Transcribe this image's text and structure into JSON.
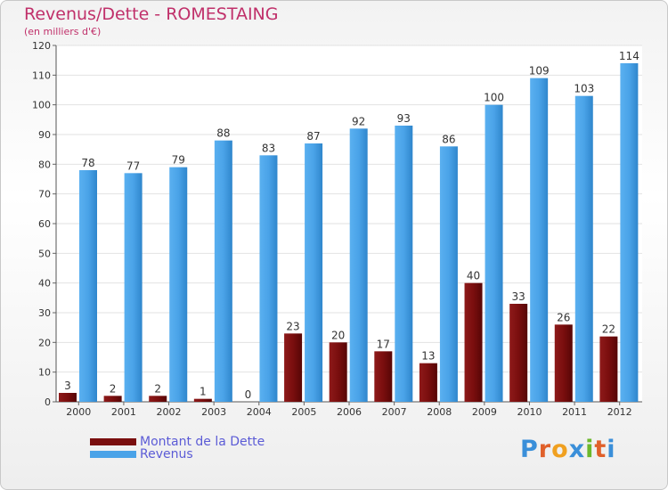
{
  "chart_data": {
    "type": "bar",
    "title": "Revenus/Dette - ROMESTAING",
    "subtitle": "(en milliers d'€)",
    "categories": [
      "2000",
      "2001",
      "2002",
      "2003",
      "2004",
      "2005",
      "2006",
      "2007",
      "2008",
      "2009",
      "2010",
      "2011",
      "2012"
    ],
    "series": [
      {
        "name": "Montant de la Dette",
        "color": "#7a0e0e",
        "values": [
          3,
          2,
          2,
          1,
          0,
          23,
          20,
          17,
          13,
          40,
          33,
          26,
          22
        ]
      },
      {
        "name": "Revenus",
        "color": "#4aa3e8",
        "values": [
          78,
          77,
          79,
          88,
          83,
          87,
          92,
          93,
          86,
          100,
          109,
          103,
          114
        ]
      }
    ],
    "ylim": [
      0,
      120
    ],
    "yticks": [
      0,
      10,
      20,
      30,
      40,
      50,
      60,
      70,
      80,
      90,
      100,
      110,
      120
    ],
    "grid": true,
    "legend_position": "bottom-left"
  },
  "logo": {
    "text": "Proxiti",
    "colors": [
      "#3a8fd9",
      "#e0602a",
      "#f0a020",
      "#3a8fd9",
      "#6cb82c",
      "#e0602a",
      "#3a8fd9"
    ]
  }
}
